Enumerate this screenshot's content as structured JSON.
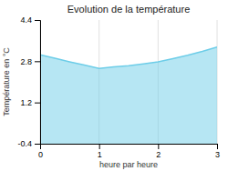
{
  "chart_data": {
    "type": "area",
    "title": "Evolution de la température",
    "x_label": "heure par heure",
    "y_label": "Température en °C",
    "x": [
      0,
      0.25,
      0.5,
      0.75,
      1.0,
      1.25,
      1.5,
      1.75,
      2.0,
      2.25,
      2.5,
      2.75,
      3.0
    ],
    "values": [
      3.05,
      2.92,
      2.78,
      2.65,
      2.52,
      2.58,
      2.63,
      2.7,
      2.78,
      2.9,
      3.03,
      3.18,
      3.35
    ],
    "color": "#6dcde8",
    "xlim": [
      0,
      3
    ],
    "ylim": [
      -0.4,
      4.4
    ],
    "xticks": [
      0,
      1,
      2,
      3
    ],
    "yticks": [
      -0.4,
      1.2,
      2.8,
      4.4
    ],
    "grid": "x"
  }
}
